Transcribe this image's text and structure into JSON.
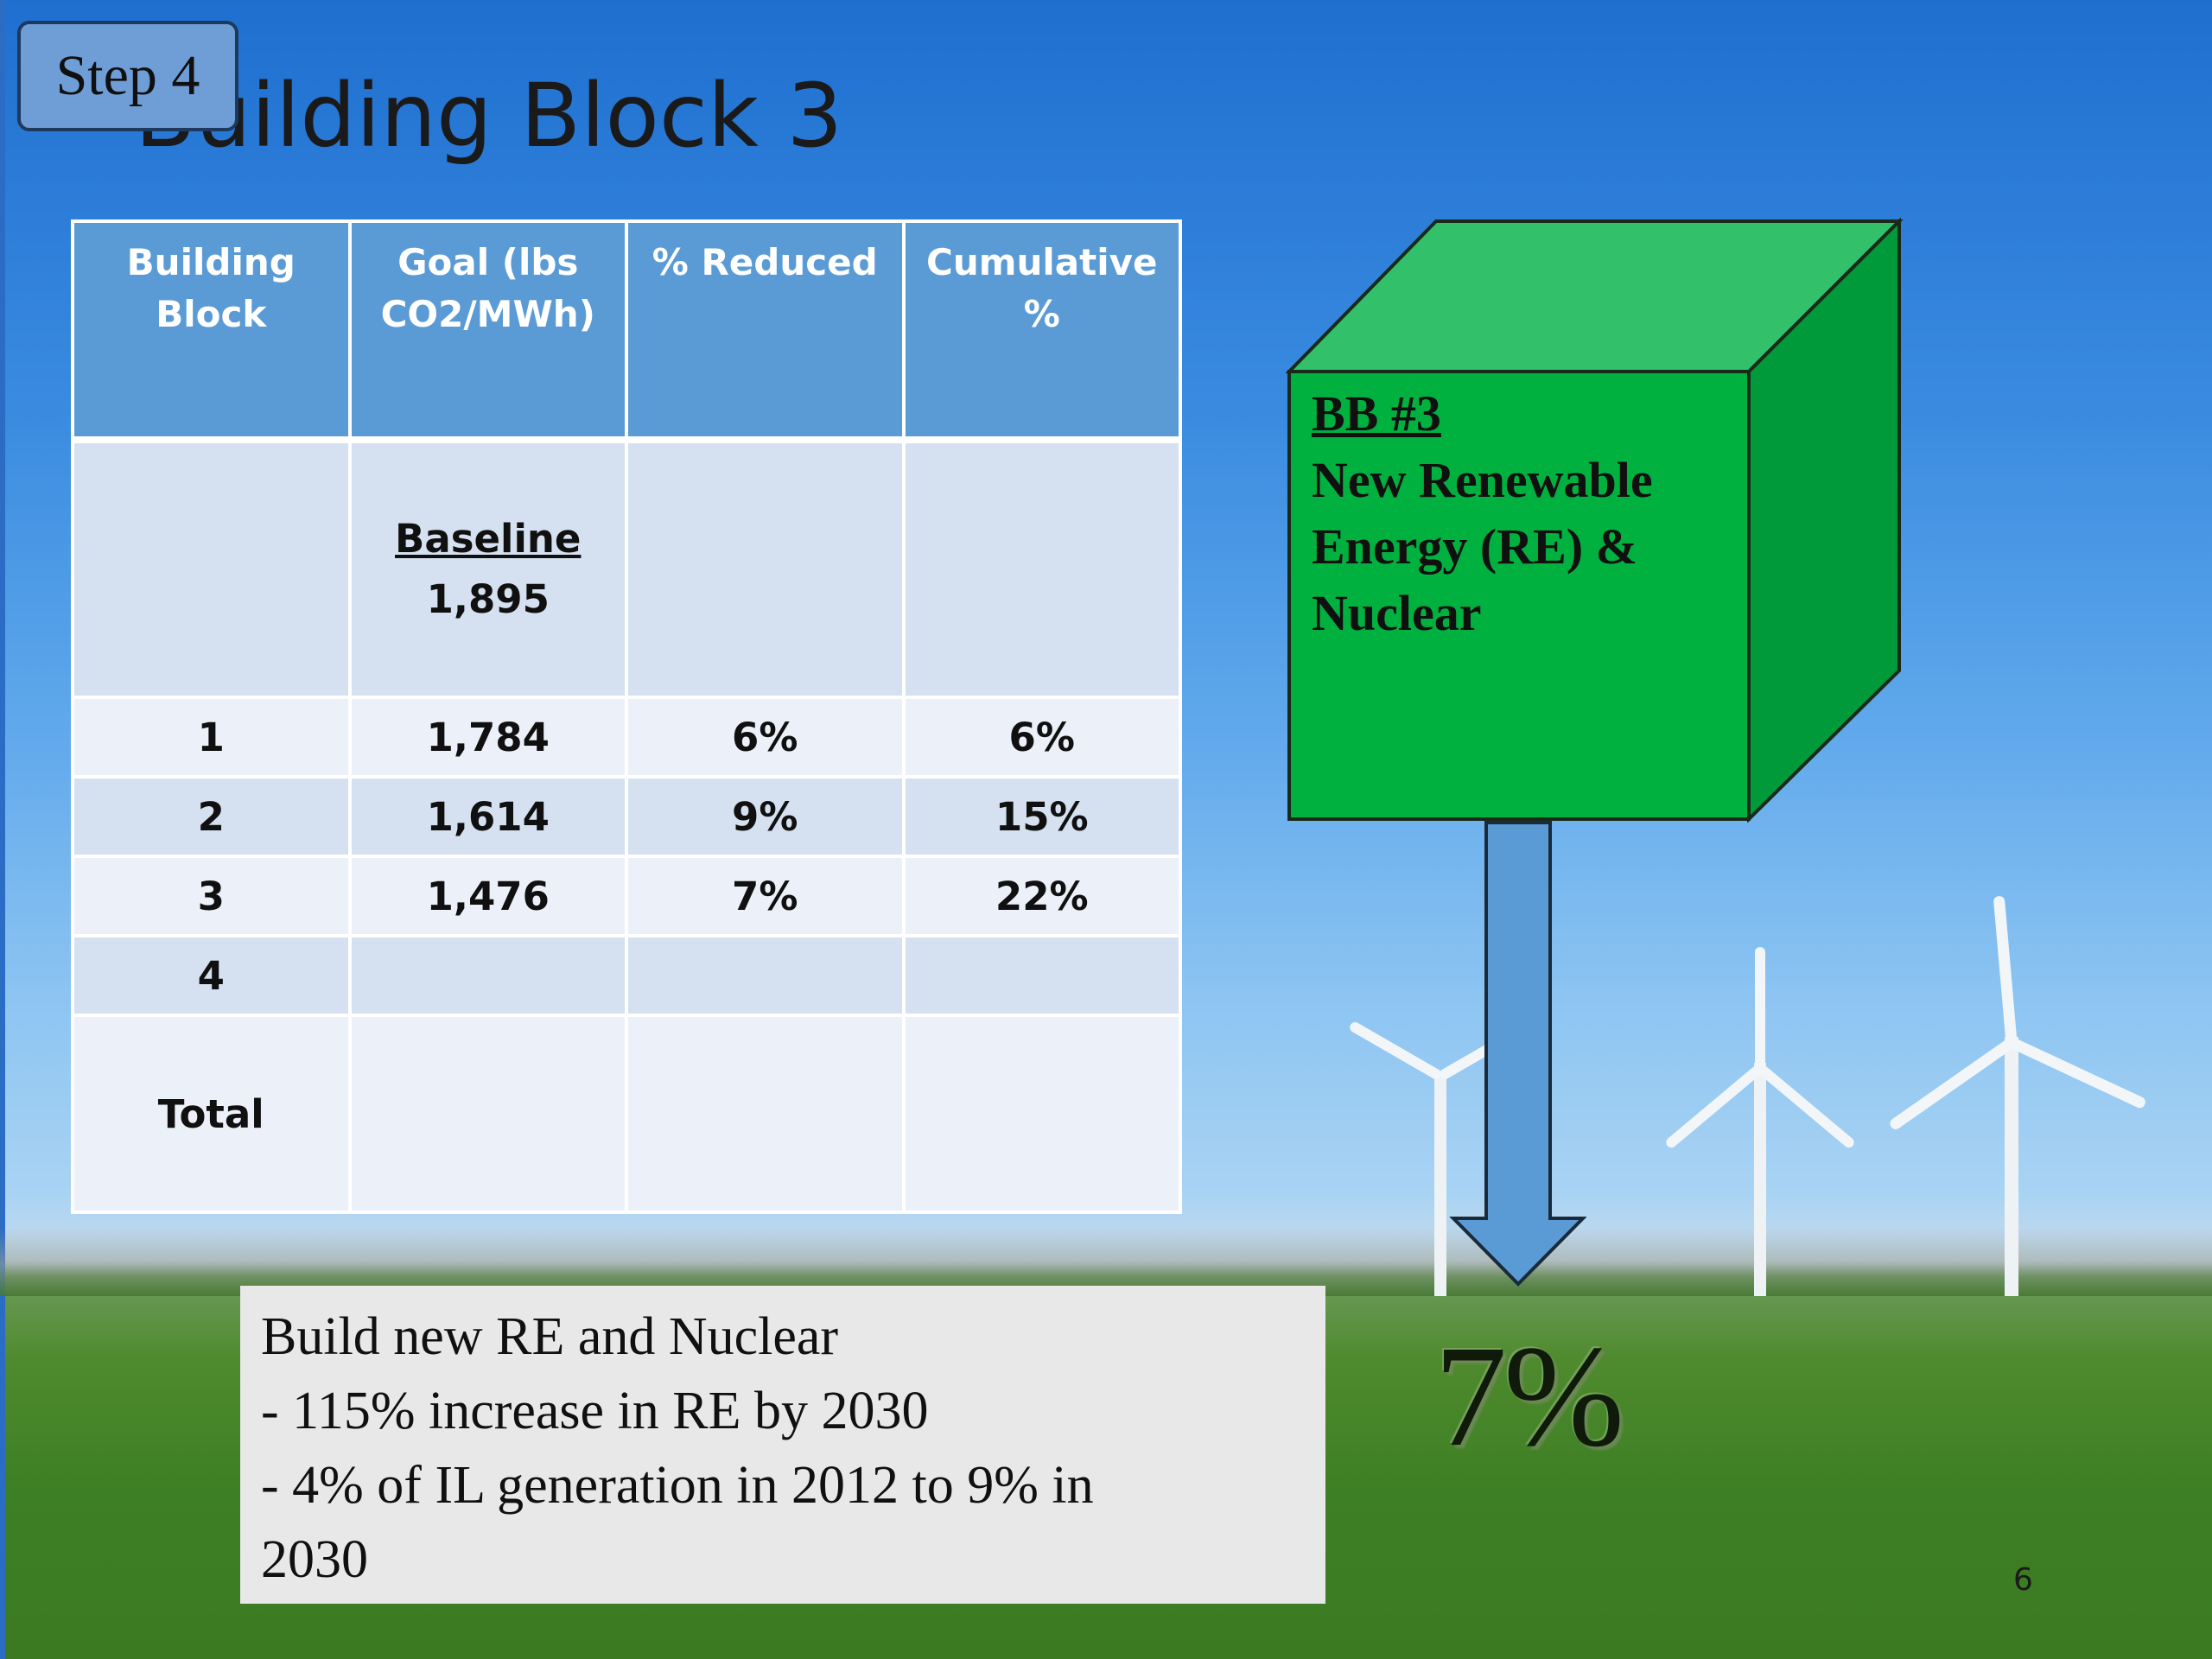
{
  "step_label": "Step 4",
  "title": "Building Block 3",
  "table": {
    "headers": [
      "Building Block",
      "Goal (lbs CO2/MWh)",
      "% Reduced",
      "Cumulative %"
    ],
    "baseline": {
      "label": "Baseline",
      "value": "1,895"
    },
    "rows": [
      {
        "block": "1",
        "goal": "1,784",
        "reduced": "6%",
        "cumulative": "6%"
      },
      {
        "block": "2",
        "goal": "1,614",
        "reduced": "9%",
        "cumulative": "15%"
      },
      {
        "block": "3",
        "goal": "1,476",
        "reduced": "7%",
        "cumulative": "22%"
      },
      {
        "block": "4",
        "goal": "",
        "reduced": "",
        "cumulative": ""
      }
    ],
    "total_label": "Total"
  },
  "cube": {
    "tag": "BB #3",
    "lines": [
      "New Renewable",
      "Energy (RE) &",
      "Nuclear"
    ],
    "colors": {
      "front": "#00b140",
      "top": "#33c06a",
      "side": "#009a3a"
    }
  },
  "arrow_color": "#5b9bd5",
  "big_percent": "7%",
  "note": [
    "Build new RE and Nuclear",
    "- 115% increase in RE by 2030",
    "- 4% of  IL generation in 2012 to 9% in",
    "2030"
  ],
  "page_number": "6"
}
